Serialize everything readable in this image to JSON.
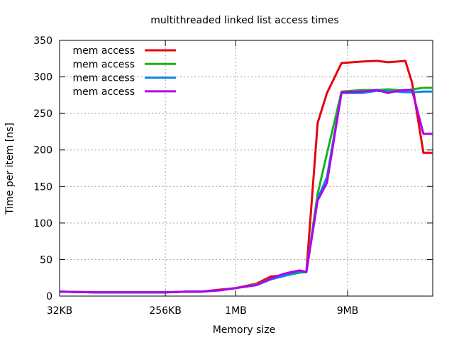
{
  "chart_data": {
    "type": "line",
    "title": "multithreaded linked list access times",
    "xlabel": "Memory size",
    "ylabel": "Time per item [ns]",
    "x_scale": "log2",
    "xlim": [
      "32KB",
      "48MB"
    ],
    "ylim": [
      0,
      350
    ],
    "yticks": [
      0,
      50,
      100,
      150,
      200,
      250,
      300,
      350
    ],
    "xticks": [
      "32KB",
      "256KB",
      "1MB",
      "9MB"
    ],
    "grid": true,
    "legend_position": "top-left",
    "x": [
      "32KB",
      "64KB",
      "128KB",
      "256KB",
      "384KB",
      "512KB",
      "768KB",
      "1MB",
      "1.5MB",
      "2MB",
      "2.5MB",
      "3MB",
      "3.5MB",
      "4MB",
      "5MB",
      "6MB",
      "8MB",
      "12MB",
      "16MB",
      "20MB",
      "24MB",
      "28MB",
      "32MB",
      "40MB",
      "48MB"
    ],
    "series": [
      {
        "name": "mem access",
        "color": "#e8000b",
        "values": [
          6,
          5,
          5,
          5,
          6,
          6,
          9,
          11,
          17,
          27,
          28,
          32,
          35,
          33,
          237,
          278,
          319,
          321,
          322,
          320,
          321,
          322,
          292,
          196,
          196
        ]
      },
      {
        "name": "mem access",
        "color": "#1ab31a",
        "values": [
          6,
          5,
          5,
          5,
          6,
          6,
          8,
          11,
          16,
          24,
          27,
          30,
          32,
          33,
          140,
          195,
          280,
          282,
          282,
          283,
          282,
          281,
          283,
          285,
          285
        ]
      },
      {
        "name": "mem access",
        "color": "#0a84ec",
        "values": [
          6,
          5,
          5,
          5,
          6,
          6,
          8,
          11,
          15,
          23,
          27,
          31,
          33,
          34,
          133,
          163,
          278,
          278,
          281,
          280,
          280,
          279,
          279,
          280,
          280
        ]
      },
      {
        "name": "mem access",
        "color": "#b000ec",
        "values": [
          6,
          5,
          5,
          5,
          6,
          6,
          8,
          11,
          15,
          24,
          30,
          33,
          35,
          33,
          131,
          155,
          279,
          280,
          282,
          278,
          281,
          282,
          282,
          222,
          222
        ]
      }
    ]
  }
}
